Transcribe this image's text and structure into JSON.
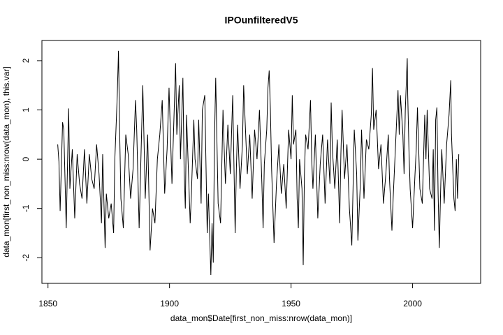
{
  "chart_data": {
    "type": "line",
    "title": "IPOunfilteredV5",
    "x_label": "data_mon$Date[first_non_miss:nrow(data_mon)]",
    "y_label": "data_mon[first_non_miss:nrow(data_mon), this.var]",
    "x": [
      1854,
      1854.5,
      1855,
      1856,
      1856.5,
      1857.5,
      1858.5,
      1859,
      1860,
      1861,
      1862,
      1863,
      1864,
      1865,
      1866,
      1867,
      1868,
      1869,
      1870,
      1871,
      1872,
      1872.5,
      1873.5,
      1874,
      1875,
      1876,
      1877,
      1877.5,
      1878.5,
      1879,
      1879.5,
      1880,
      1881,
      1882,
      1883,
      1884,
      1885,
      1886,
      1886.5,
      1887.5,
      1889,
      1889.5,
      1890,
      1891,
      1892,
      1893,
      1894,
      1895,
      1896,
      1897,
      1898,
      1899,
      1899.8,
      1900.5,
      1901,
      1902.5,
      1903,
      1904,
      1904.5,
      1905.5,
      1906,
      1906.5,
      1907,
      1908.5,
      1909,
      1910,
      1910.5,
      1911.5,
      1912,
      1913,
      1913.5,
      1914.5,
      1915.5,
      1916,
      1917,
      1917.5,
      1918,
      1918.5,
      1919,
      1920,
      1921,
      1922,
      1922.5,
      1923,
      1924,
      1925,
      1926,
      1927,
      1927.5,
      1928,
      1929,
      1930,
      1930.5,
      1931,
      1932,
      1933,
      1934,
      1935,
      1936,
      1937,
      1938,
      1938.5,
      1939,
      1940,
      1940.5,
      1941,
      1941.5,
      1942,
      1943,
      1944,
      1945,
      1946,
      1947,
      1948,
      1949,
      1950,
      1950.5,
      1951,
      1952,
      1952.5,
      1953,
      1953.5,
      1954.5,
      1955,
      1955.5,
      1956,
      1957,
      1958,
      1958.5,
      1959,
      1960,
      1961,
      1962,
      1963,
      1964,
      1965,
      1966,
      1966.5,
      1967,
      1968,
      1969,
      1970,
      1970.5,
      1971,
      1972,
      1973,
      1974,
      1975,
      1975.5,
      1976,
      1977,
      1977.5,
      1978.5,
      1979,
      1980,
      1981,
      1982,
      1983,
      1983.5,
      1984,
      1985,
      1986,
      1987,
      1988,
      1989,
      1990,
      1990.5,
      1991.5,
      1992,
      1993,
      1994,
      1994.5,
      1995,
      1996,
      1996.5,
      1997,
      1997.8,
      1998,
      1998.5,
      1999,
      2000,
      2001,
      2001.5,
      2002,
      2003,
      2004,
      2005,
      2005.5,
      2006,
      2007,
      2008,
      2008.5,
      2009,
      2009.5,
      2010,
      2010.5,
      2011,
      2011.5,
      2012,
      2013,
      2014,
      2015,
      2015.7,
      2016,
      2017,
      2017.5,
      2018,
      2018.5,
      2019
    ],
    "values": [
      0.3,
      -0.05,
      -1.05,
      0.75,
      0.6,
      -1.4,
      1.03,
      -0.6,
      0.2,
      -1.2,
      0.1,
      -0.5,
      -0.8,
      0.2,
      -0.9,
      0.1,
      -0.4,
      -0.6,
      0.3,
      -0.3,
      -1.3,
      0.1,
      -1.8,
      -0.7,
      -1.2,
      -0.9,
      -1.5,
      0.0,
      1.3,
      2.2,
      0.5,
      -0.8,
      -1.4,
      0.5,
      0.1,
      -0.8,
      -0.2,
      1.2,
      0.6,
      -1.4,
      1.5,
      0.4,
      -0.8,
      0.5,
      -1.85,
      -1.0,
      -1.3,
      0.0,
      0.5,
      1.2,
      -0.7,
      0.2,
      1.45,
      0.3,
      -0.5,
      1.95,
      0.5,
      1.5,
      0.0,
      1.65,
      -0.2,
      -1.0,
      0.9,
      -1.3,
      -0.7,
      0.8,
      0.0,
      -0.4,
      0.8,
      -0.9,
      1.0,
      1.3,
      -1.5,
      -0.7,
      -2.35,
      -1.3,
      -2.1,
      0.4,
      1.65,
      -0.9,
      -1.3,
      1.0,
      0.2,
      -0.5,
      0.7,
      -0.3,
      1.3,
      -1.5,
      -0.2,
      0.7,
      -0.6,
      0.3,
      1.5,
      0.9,
      -0.3,
      0.5,
      -0.8,
      0.6,
      0.0,
      1.0,
      -0.5,
      -1.4,
      -0.1,
      0.6,
      1.45,
      1.8,
      1.0,
      -0.2,
      -1.7,
      -0.5,
      0.3,
      -0.7,
      -0.1,
      -1.0,
      0.6,
      0.0,
      1.3,
      0.3,
      0.6,
      -0.8,
      -1.4,
      0.0,
      -0.6,
      -2.15,
      -0.3,
      0.5,
      0.2,
      1.2,
      0.0,
      -0.6,
      0.5,
      -1.2,
      -0.1,
      0.5,
      -0.9,
      0.4,
      -0.5,
      1.15,
      0.2,
      -0.6,
      0.4,
      -1.3,
      0.1,
      1.0,
      -0.4,
      0.3,
      -1.0,
      -1.75,
      -0.6,
      0.6,
      -0.3,
      -1.65,
      -0.5,
      0.6,
      -0.8,
      0.4,
      0.2,
      0.9,
      1.85,
      0.6,
      1.0,
      -0.2,
      0.3,
      -0.9,
      -0.3,
      0.5,
      -0.4,
      -1.45,
      -0.8,
      0.3,
      1.4,
      0.5,
      1.3,
      0.5,
      -0.3,
      1.0,
      2.05,
      1.3,
      0.2,
      -0.6,
      -1.4,
      -0.3,
      0.2,
      1.05,
      -0.6,
      -0.9,
      0.9,
      0.0,
      1.0,
      -0.6,
      -0.8,
      0.2,
      -1.45,
      0.8,
      1.05,
      -0.7,
      -1.8,
      -0.7,
      0.2,
      -0.9,
      0.3,
      0.9,
      1.6,
      0.5,
      -0.8,
      -1.05,
      0.0,
      -0.8,
      0.1
    ],
    "color": "#000000",
    "xlim": [
      1847.5,
      2028
    ],
    "ylim": [
      -2.52,
      2.41
    ],
    "xticks": [
      1850,
      1900,
      1950,
      2000
    ],
    "yticks": [
      -2,
      -1,
      0,
      1,
      2
    ],
    "grid": false
  }
}
